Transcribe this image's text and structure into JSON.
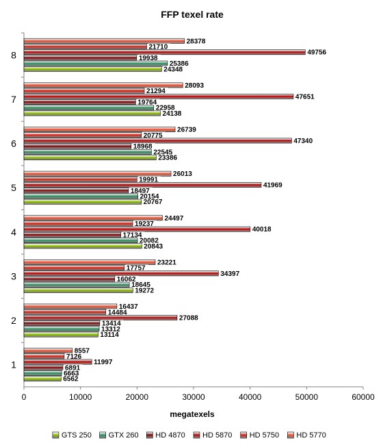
{
  "chart_data": {
    "type": "bar",
    "orientation": "horizontal",
    "title": "FFP texel rate",
    "xlabel": "megatexels",
    "ylabel": "",
    "xlim": [
      0,
      60000
    ],
    "xticks": [
      "0",
      "10000",
      "20000",
      "30000",
      "40000",
      "50000",
      "60000"
    ],
    "categories": [
      "1",
      "2",
      "3",
      "4",
      "5",
      "6",
      "7",
      "8"
    ],
    "legend_position": "bottom",
    "grid": false,
    "series": [
      {
        "name": "GTS 250",
        "color": "#99cc00",
        "values": [
          6562,
          13114,
          19272,
          20843,
          20767,
          23386,
          24138,
          24348
        ]
      },
      {
        "name": "GTX 260",
        "color": "#339966",
        "values": [
          6663,
          13312,
          18645,
          20082,
          20154,
          22545,
          22958,
          25386
        ]
      },
      {
        "name": "HD 4870",
        "color": "#800000",
        "values": [
          6891,
          13414,
          16062,
          17134,
          18497,
          18968,
          19764,
          19938
        ]
      },
      {
        "name": "HD 5870",
        "color": "#c00000",
        "values": [
          11997,
          27088,
          34397,
          40018,
          41969,
          47340,
          47651,
          49756
        ]
      },
      {
        "name": "HD 5750",
        "color": "#e02010",
        "values": [
          7126,
          14484,
          17757,
          19237,
          19991,
          20775,
          21294,
          21710
        ]
      },
      {
        "name": "HD 5770",
        "color": "#ff5533",
        "values": [
          8557,
          16437,
          23221,
          24497,
          26013,
          26739,
          28093,
          28378
        ]
      }
    ]
  }
}
